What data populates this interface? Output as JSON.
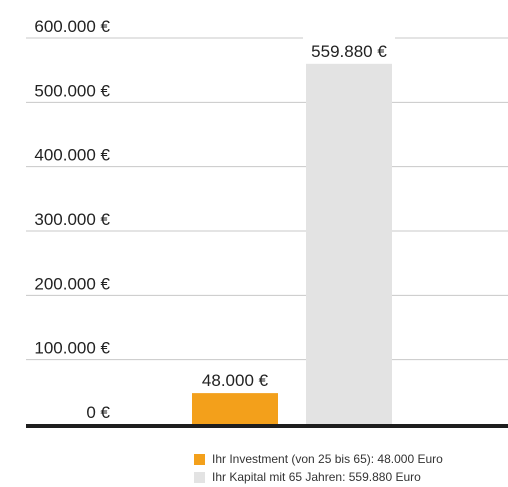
{
  "chart_data": {
    "type": "bar",
    "categories": [
      "Ihr Investment (von 25 bis 65): 48.000 Euro",
      "Ihr Kapital mit 65 Jahren: 559.880 Euro"
    ],
    "values": [
      48000,
      559880
    ],
    "value_labels": [
      "48.000 €",
      "559.880 €"
    ],
    "colors": [
      "#f3a01b",
      "#e3e3e3"
    ],
    "ylim": [
      0,
      600000
    ],
    "yticks": [
      0,
      100000,
      200000,
      300000,
      400000,
      500000,
      600000
    ],
    "ytick_labels": [
      "0 €",
      "100.000 €",
      "200.000 €",
      "300.000 €",
      "400.000 €",
      "500.000 €",
      "600.000 €"
    ],
    "grid": true,
    "legend_position": "bottom",
    "title": "",
    "xlabel": "",
    "ylabel": ""
  },
  "legend": {
    "items": [
      {
        "label": "Ihr Investment (von 25 bis 65): 48.000 Euro",
        "color": "#f3a01b"
      },
      {
        "label": "Ihr Kapital mit 65 Jahren: 559.880 Euro",
        "color": "#e3e3e3"
      }
    ]
  }
}
